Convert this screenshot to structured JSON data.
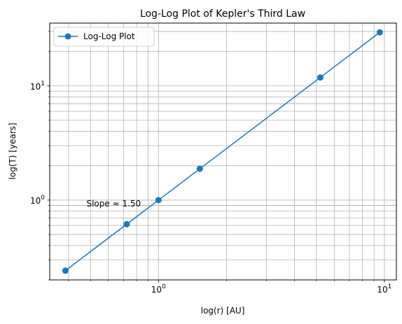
{
  "chart_data": {
    "type": "line",
    "title": "Log-Log Plot of Kepler's Third Law",
    "xlabel": "log(r) [AU]",
    "ylabel": "log(T) [years]",
    "xscale": "log",
    "yscale": "log",
    "xlim": [
      0.33,
      11.3
    ],
    "ylim": [
      0.2,
      35.5
    ],
    "grid": "both (major and minor)",
    "legend_position": "top-left",
    "x_tick_labels": [
      {
        "value": 1,
        "label": "10",
        "exp": "0"
      },
      {
        "value": 10,
        "label": "10",
        "exp": "1"
      }
    ],
    "y_tick_labels": [
      {
        "value": 1,
        "label": "10",
        "exp": "0"
      },
      {
        "value": 10,
        "label": "10",
        "exp": "1"
      }
    ],
    "series": [
      {
        "name": "Log-Log Plot",
        "color": "#1f77b4",
        "marker": "circle",
        "x": [
          0.387,
          0.723,
          1.0,
          1.524,
          5.203,
          9.537
        ],
        "y": [
          0.241,
          0.615,
          1.0,
          1.881,
          11.86,
          29.46
        ]
      }
    ],
    "annotations": [
      {
        "text": "Slope ≈ 1.50",
        "x": 0.48,
        "y": 0.93
      }
    ]
  }
}
